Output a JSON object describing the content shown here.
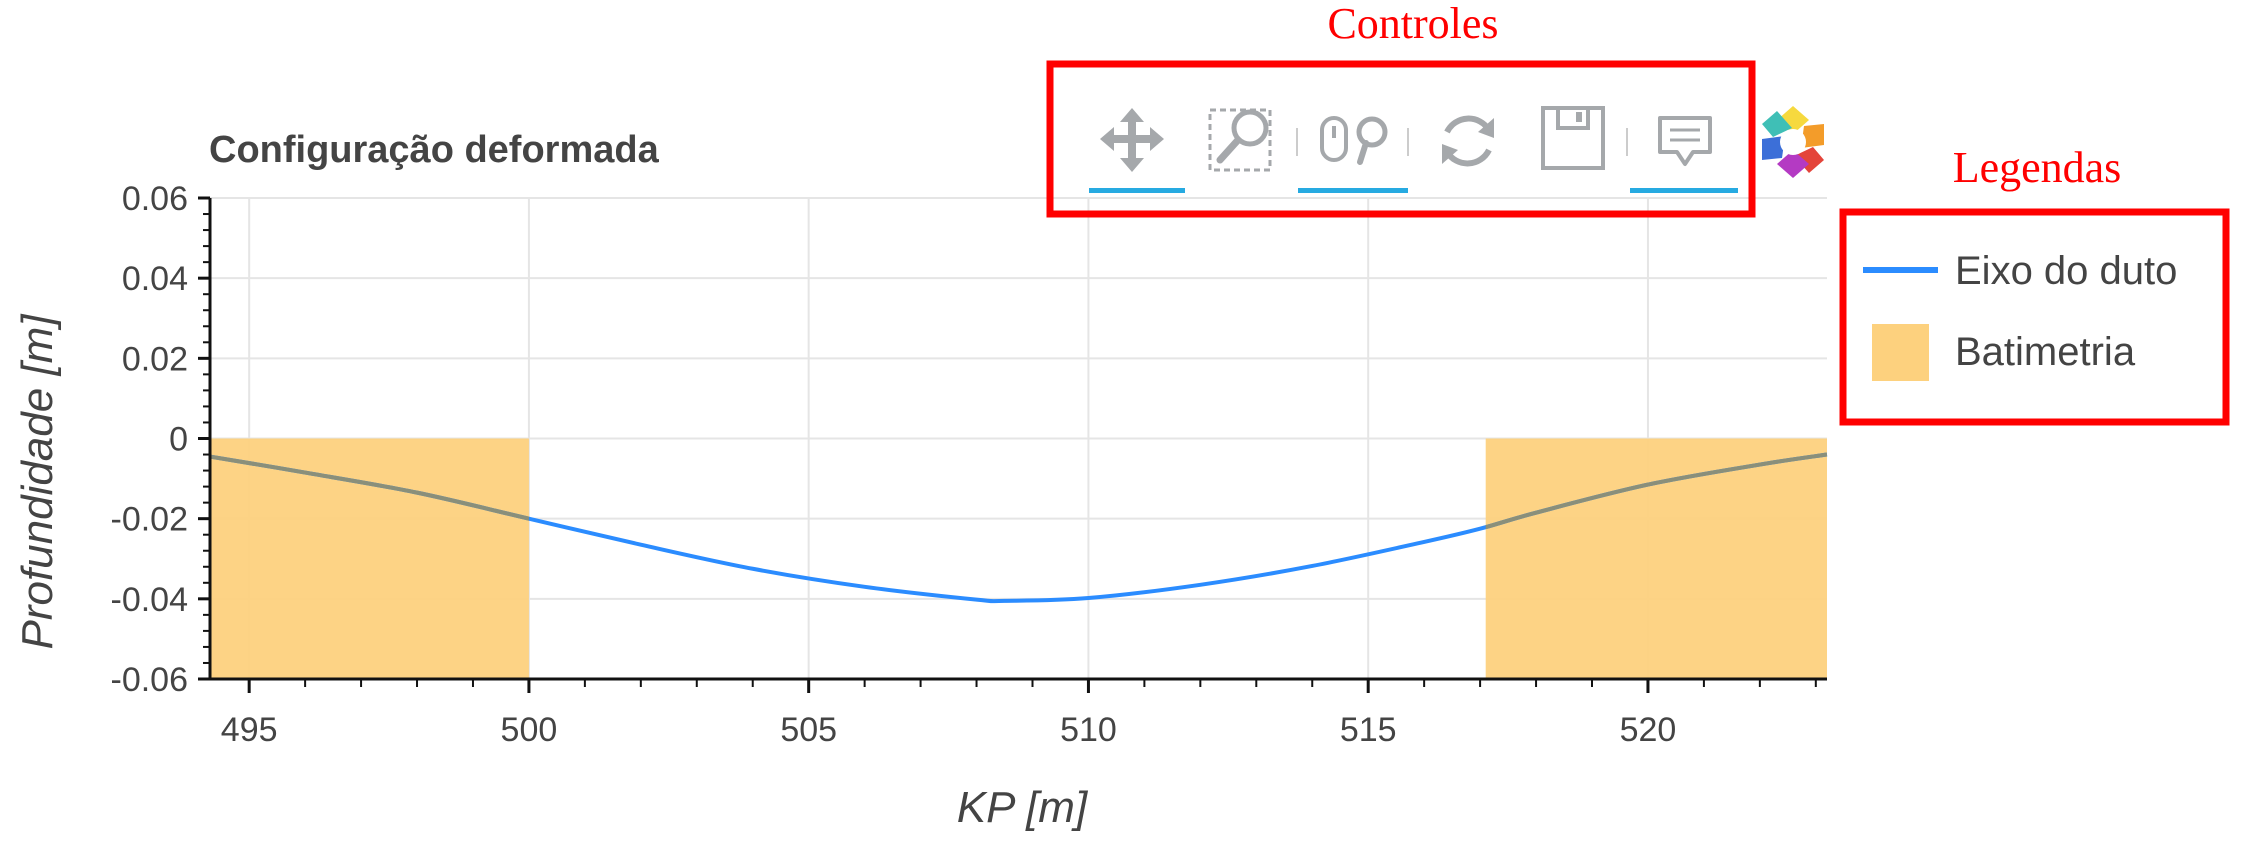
{
  "annotations": {
    "controls_label": "Controles",
    "legends_label": "Legendas",
    "annotation_color": "#ff0000"
  },
  "toolbar": {
    "tools": [
      {
        "name": "pan-tool",
        "icon": "pan-arrows-icon",
        "active": true
      },
      {
        "name": "box-zoom-tool",
        "icon": "box-zoom-icon",
        "active": false
      },
      {
        "name": "wheel-zoom-tool",
        "icon": "wheel-zoom-icon",
        "active": true
      },
      {
        "name": "reset-tool",
        "icon": "reset-icon",
        "active": false
      },
      {
        "name": "save-tool",
        "icon": "save-icon",
        "active": false
      },
      {
        "name": "hover-tool",
        "icon": "hover-tooltip-icon",
        "active": true
      }
    ],
    "active_color": "#26aae1",
    "icon_color": "#a5a8ab",
    "logo": "bokeh-logo-icon"
  },
  "chart_data": {
    "type": "line",
    "title": "Configuração deformada",
    "xlabel": "KP [m]",
    "ylabel": "Profundidade [m]",
    "xlim": [
      494.3,
      523.2
    ],
    "ylim": [
      -0.06,
      0.06
    ],
    "xticks": [
      495,
      500,
      505,
      510,
      515,
      520
    ],
    "xtick_labels": [
      "495",
      "500",
      "505",
      "510",
      "515",
      "520"
    ],
    "yticks": [
      0.06,
      0.04,
      0.02,
      0,
      -0.02,
      -0.04,
      -0.06
    ],
    "ytick_labels": [
      "0.06",
      "0.04",
      "0.02",
      "0",
      "-0.02",
      "-0.04",
      "-0.06"
    ],
    "grid": true,
    "legend_position": "right, outside plot",
    "series": [
      {
        "name": "Eixo do duto",
        "color": "#2b8cff",
        "x": [
          494.3,
          496,
          498,
          500,
          502,
          504,
          506,
          508,
          508.5,
          510,
          512,
          514,
          516,
          517,
          518,
          520,
          522,
          523.2
        ],
        "y": [
          -0.0045,
          -0.0085,
          -0.0135,
          -0.02,
          -0.0265,
          -0.0325,
          -0.037,
          -0.0402,
          -0.0405,
          -0.0398,
          -0.0365,
          -0.0318,
          -0.0258,
          -0.0225,
          -0.0185,
          -0.0115,
          -0.0065,
          -0.004
        ]
      }
    ],
    "bathymetry": {
      "name": "Batimetria",
      "color": "#fdd17e",
      "regions": [
        {
          "x0": 494.3,
          "x1": 500.0,
          "y0": -0.06,
          "y1": 0.0
        },
        {
          "x0": 517.1,
          "x1": 523.2,
          "y0": -0.06,
          "y1": 0.0
        }
      ]
    }
  }
}
